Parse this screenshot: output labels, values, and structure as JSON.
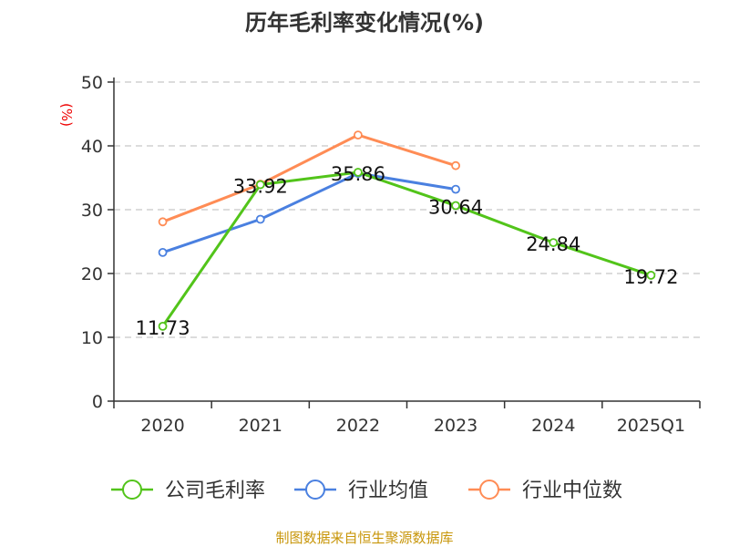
{
  "chart_data": {
    "type": "line",
    "title": "历年毛利率变化情况(%)",
    "ylabel": "(%)",
    "xlabel": "",
    "ylim": [
      0,
      50
    ],
    "yticks": [
      0,
      10,
      20,
      30,
      40,
      50
    ],
    "grid": true,
    "categories": [
      "2020",
      "2021",
      "2022",
      "2023",
      "2024",
      "2025Q1"
    ],
    "legend_position": "bottom",
    "series": [
      {
        "name": "公司毛利率",
        "color": "#52c41a",
        "values": [
          11.73,
          33.92,
          35.86,
          30.64,
          24.84,
          19.72
        ],
        "labels": [
          "11.73",
          "33.92",
          "35.86",
          "30.64",
          "24.84",
          "19.72"
        ]
      },
      {
        "name": "行业均值",
        "color": "#4a80e0",
        "values": [
          23.3,
          28.5,
          35.7,
          33.2,
          null,
          null
        ]
      },
      {
        "name": "行业中位数",
        "color": "#ff8c55",
        "values": [
          28.1,
          34.0,
          41.7,
          36.9,
          null,
          null
        ]
      }
    ]
  },
  "footer": {
    "source": "制图数据来自恒生聚源数据库"
  }
}
